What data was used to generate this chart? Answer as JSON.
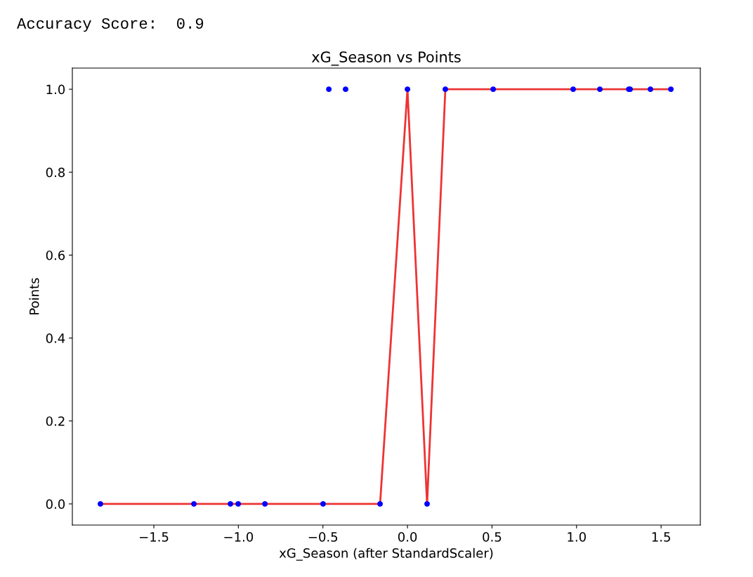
{
  "chart_data": {
    "type": "scatter",
    "title": "xG_Season vs Points",
    "xlabel": "xG_Season (after StandardScaler)",
    "ylabel": "Points",
    "annotations": [
      "Accuracy Score:  0.9"
    ],
    "series": [
      {
        "color": "#0000ff",
        "marker": "circle",
        "x": [
          -1.816,
          -1.263,
          -1.047,
          -1.001,
          -0.843,
          -0.499,
          -0.162,
          0.116,
          -0.465,
          -0.366,
          0.0,
          0.224,
          0.507,
          0.98,
          1.138,
          1.309,
          1.317,
          1.437,
          1.558
        ],
        "values": [
          0,
          0,
          0,
          0,
          0,
          0,
          0,
          0,
          1,
          1,
          1,
          1,
          1,
          1,
          1,
          1,
          1,
          1,
          1
        ]
      },
      {
        "type": "line",
        "color": "#ee3333",
        "x": [
          -1.816,
          -1.263,
          -1.047,
          -1.001,
          -0.843,
          -0.499,
          -0.162,
          0.0,
          0.116,
          0.224,
          0.507,
          0.98,
          1.138,
          1.309,
          1.317,
          1.437,
          1.558
        ],
        "values": [
          0,
          0,
          0,
          0,
          0,
          0,
          0,
          1,
          0,
          1,
          1,
          1,
          1,
          1,
          1,
          1,
          1
        ]
      }
    ],
    "xlim": [
      -1.982,
      1.732
    ],
    "ylim": [
      -0.051,
      1.051
    ],
    "xticks": [
      {
        "value": -1.5,
        "label": "−1.5"
      },
      {
        "value": -1.0,
        "label": "−1.0"
      },
      {
        "value": -0.5,
        "label": "−0.5"
      },
      {
        "value": 0.0,
        "label": "0.0"
      },
      {
        "value": 0.5,
        "label": "0.5"
      },
      {
        "value": 1.0,
        "label": "1.0"
      },
      {
        "value": 1.5,
        "label": "1.5"
      }
    ],
    "yticks": [
      {
        "value": 0.0,
        "label": "0.0"
      },
      {
        "value": 0.2,
        "label": "0.2"
      },
      {
        "value": 0.4,
        "label": "0.4"
      },
      {
        "value": 0.6,
        "label": "0.6"
      },
      {
        "value": 0.8,
        "label": "0.8"
      },
      {
        "value": 1.0,
        "label": "1.0"
      }
    ],
    "grid": false,
    "legend": false
  }
}
